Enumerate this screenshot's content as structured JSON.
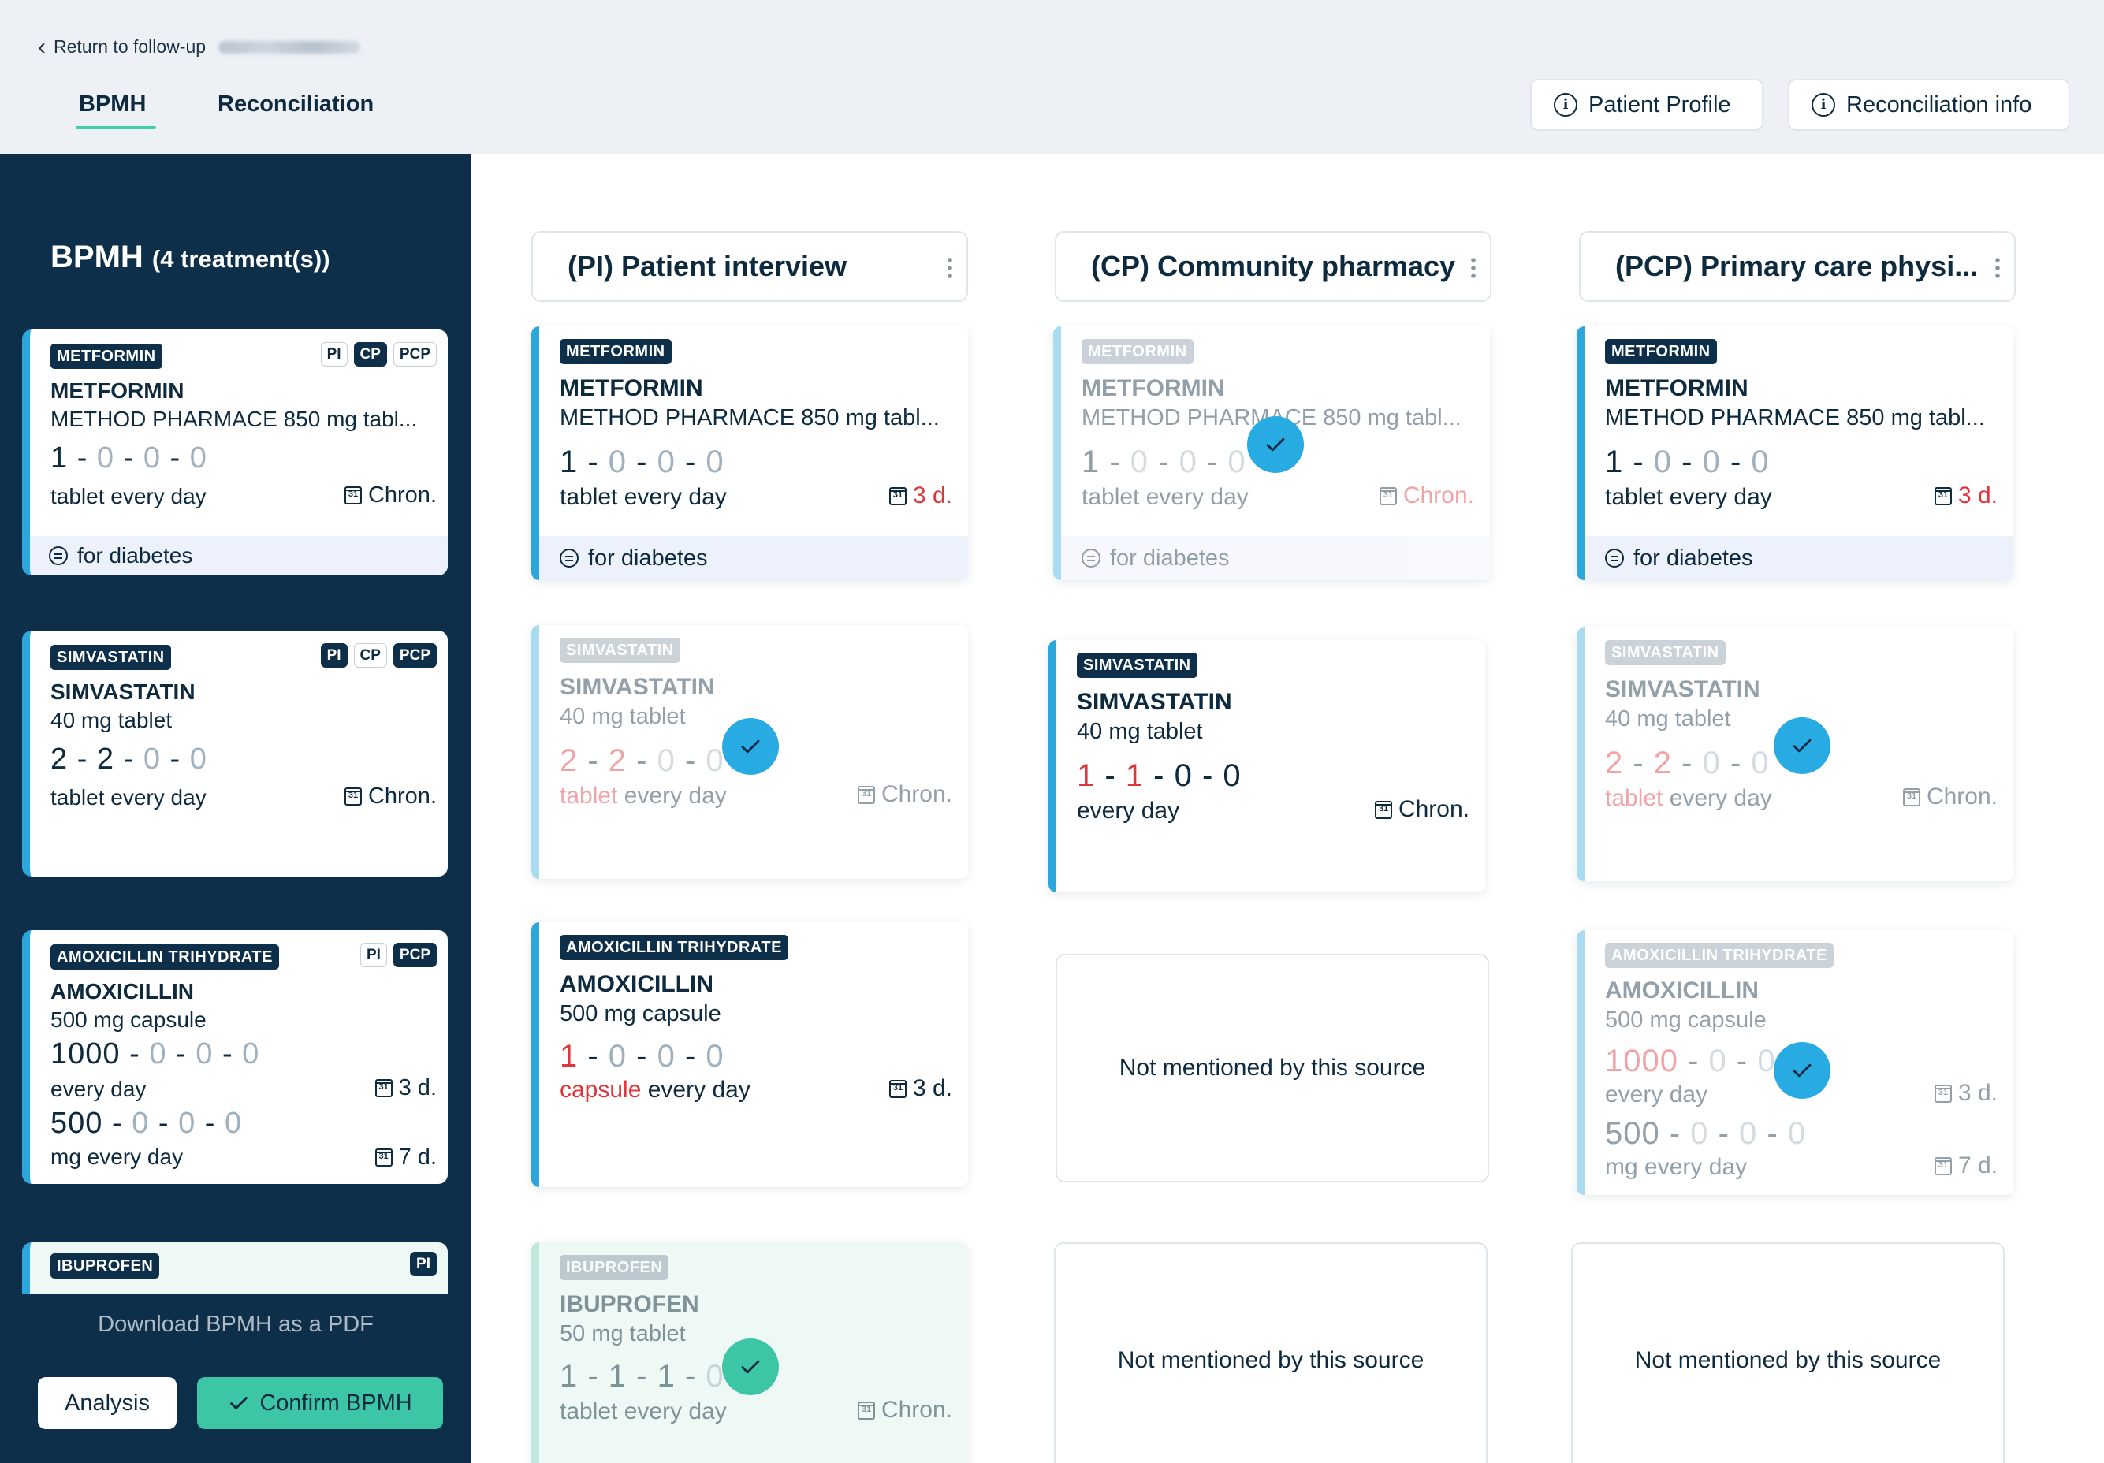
{
  "header": {
    "back_label": "Return to follow-up",
    "tabs": [
      {
        "label": "BPMH"
      },
      {
        "label": "Reconciliation"
      }
    ],
    "active_tab": "BPMH",
    "buttons": {
      "patient_profile": "Patient Profile",
      "reconciliation_info": "Reconciliation info"
    }
  },
  "sidebar": {
    "title": "BPMH",
    "count": "(4 treatment(s))",
    "cards": [
      {
        "badge": "METFORMIN",
        "sources": [
          "PI",
          "CP",
          "PCP"
        ],
        "name": "METFORMIN",
        "desc": "METHOD PHARMACE 850 mg tabl...",
        "dose": [
          "1",
          "0",
          "0",
          "0"
        ],
        "freq": "tablet every day",
        "duration": "Chron.",
        "note": "for diabetes"
      },
      {
        "badge": "SIMVASTATIN",
        "sources": [
          "PI",
          "CP",
          "PCP"
        ],
        "name": "SIMVASTATIN",
        "desc": "40 mg tablet",
        "dose": [
          "2",
          "2",
          "0",
          "0"
        ],
        "freq": "tablet every day",
        "duration": "Chron."
      },
      {
        "badge": "AMOXICILLIN TRIHYDRATE",
        "sources": [
          "PI",
          "PCP"
        ],
        "name": "AMOXICILLIN",
        "desc": "500 mg capsule",
        "dose": [
          "1000",
          "0",
          "0",
          "0"
        ],
        "freq": "every day",
        "duration": "3 d.",
        "dose2": [
          "500",
          "0",
          "0",
          "0"
        ],
        "freq2": "mg every day",
        "duration2": "7 d."
      },
      {
        "badge": "IBUPROFEN",
        "sources": [
          "PI"
        ]
      }
    ],
    "download_label": "Download BPMH as a PDF",
    "analysis_label": "Analysis",
    "confirm_label": "Confirm BPMH"
  },
  "columns": [
    {
      "title": "(PI) Patient interview",
      "cards": [
        {
          "badge": "METFORMIN",
          "name": "METFORMIN",
          "desc": "METHOD PHARMACE 850 mg tabl...",
          "dose": [
            "1",
            "0",
            "0",
            "0"
          ],
          "freq": "tablet every day",
          "duration": "3 d.",
          "note": "for diabetes"
        },
        {
          "badge": "SIMVASTATIN",
          "name": "SIMVASTATIN",
          "desc": "40 mg tablet",
          "dose": [
            "2",
            "2",
            "0",
            "0"
          ],
          "freq_unit": "tablet",
          "freq_rest": "every day",
          "duration": "Chron."
        },
        {
          "badge": "AMOXICILLIN TRIHYDRATE",
          "name": "AMOXICILLIN",
          "desc": "500 mg capsule",
          "dose": [
            "1",
            "0",
            "0",
            "0"
          ],
          "freq_unit": "capsule",
          "freq_rest": "every day",
          "duration": "3 d."
        },
        {
          "badge": "IBUPROFEN",
          "name": "IBUPROFEN",
          "desc": "50 mg tablet",
          "dose": [
            "1",
            "1",
            "1",
            "0"
          ],
          "freq": "tablet every day",
          "duration": "Chron."
        }
      ]
    },
    {
      "title": "(CP) Community pharmacy",
      "cards": [
        {
          "badge": "METFORMIN",
          "name": "METFORMIN",
          "desc": "METHOD PHARMACE 850 mg tabl...",
          "dose": [
            "1",
            "0",
            "0",
            "0"
          ],
          "freq": "tablet every day",
          "duration": "Chron.",
          "note": "for diabetes"
        },
        {
          "badge": "SIMVASTATIN",
          "name": "SIMVASTATIN",
          "desc": "40 mg tablet",
          "dose": [
            "1",
            "1",
            "0",
            "0"
          ],
          "freq": "every day",
          "duration": "Chron."
        }
      ],
      "not_mentioned": "Not mentioned by this source"
    },
    {
      "title": "(PCP) Primary care physi...",
      "cards": [
        {
          "badge": "METFORMIN",
          "name": "METFORMIN",
          "desc": "METHOD PHARMACE 850 mg tabl...",
          "dose": [
            "1",
            "0",
            "0",
            "0"
          ],
          "freq": "tablet every day",
          "duration": "3 d.",
          "note": "for diabetes"
        },
        {
          "badge": "SIMVASTATIN",
          "name": "SIMVASTATIN",
          "desc": "40 mg tablet",
          "dose": [
            "2",
            "2",
            "0",
            "0"
          ],
          "freq_unit": "tablet",
          "freq_rest": "every day",
          "duration": "Chron."
        },
        {
          "badge": "AMOXICILLIN TRIHYDRATE",
          "name": "AMOXICILLIN",
          "desc": "500 mg capsule",
          "dose": [
            "1000",
            "0",
            "0",
            "0"
          ],
          "freq": "every day",
          "duration": "3 d.",
          "dose2": [
            "500",
            "0",
            "0",
            "0"
          ],
          "freq2": "mg every day",
          "duration2": "7 d."
        }
      ],
      "not_mentioned": "Not mentioned by this source"
    }
  ],
  "icons": {
    "back": "chevron-left-icon",
    "info": "info-circle-icon",
    "calendar": "calendar-icon",
    "note": "comment-icon",
    "check": "check-icon",
    "kebab": "more-vertical-icon"
  },
  "colors": {
    "navy": "#0e2f4a",
    "accent_blue": "#27abe2",
    "accent_green": "#3cc6a6",
    "dose_red": "#e0353a"
  }
}
